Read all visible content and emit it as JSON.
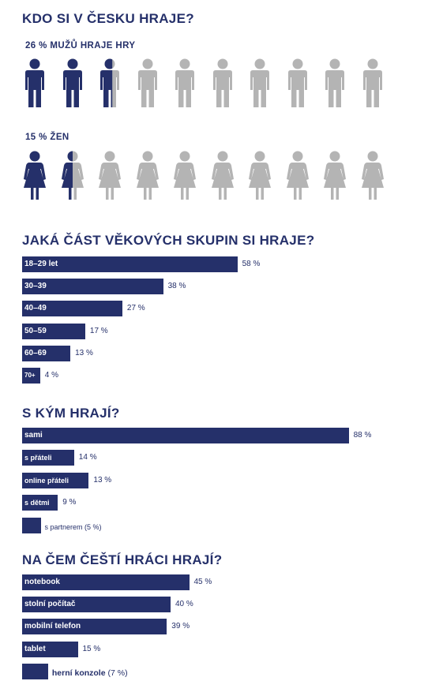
{
  "section1": {
    "title": "KDO SI V ČESKU HRAJE?",
    "men_label": "26 % MUŽŮ HRAJE HRY",
    "men_share": 0.26,
    "women_label": "15 % ŽEN",
    "women_share": 0.15,
    "colors": {
      "active": "#25306a",
      "inactive": "#b4b4b4"
    },
    "icons": {
      "men": "male-person-icon",
      "women": "female-person-icon"
    }
  },
  "chart_data": [
    {
      "type": "bar",
      "title": "JAKÁ ČÁST VĚKOVÝCH SKUPIN SI HRAJE?",
      "categories": [
        "18–29 let",
        "30–39",
        "40–49",
        "50–59",
        "60–69",
        "70+"
      ],
      "values": [
        58,
        38,
        27,
        17,
        13,
        4
      ],
      "labels": [
        "58 %",
        "38 %",
        "27 %",
        "17 %",
        "13 %",
        "4 %"
      ]
    },
    {
      "type": "bar",
      "title": "S KÝM HRAJÍ?",
      "categories": [
        "sami",
        "s přáteli",
        "online přáteli",
        "s dětmi",
        "s partnerem"
      ],
      "values": [
        88,
        14,
        13,
        9,
        5
      ],
      "labels": [
        "88 %",
        "14 %",
        "13 %",
        "9 %",
        "(5 %)"
      ]
    },
    {
      "type": "bar",
      "title": "NA ČEM ČEŠTÍ HRÁCI HRAJÍ?",
      "categories": [
        "notebook",
        "stolní počítač",
        "mobilní telefon",
        "tablet",
        "herní konzole"
      ],
      "values": [
        45,
        40,
        39,
        15,
        7
      ],
      "labels": [
        "45 %",
        "40 %",
        "39 %",
        "15 %",
        "(7 %)"
      ]
    }
  ],
  "bar_color": "#25306a"
}
